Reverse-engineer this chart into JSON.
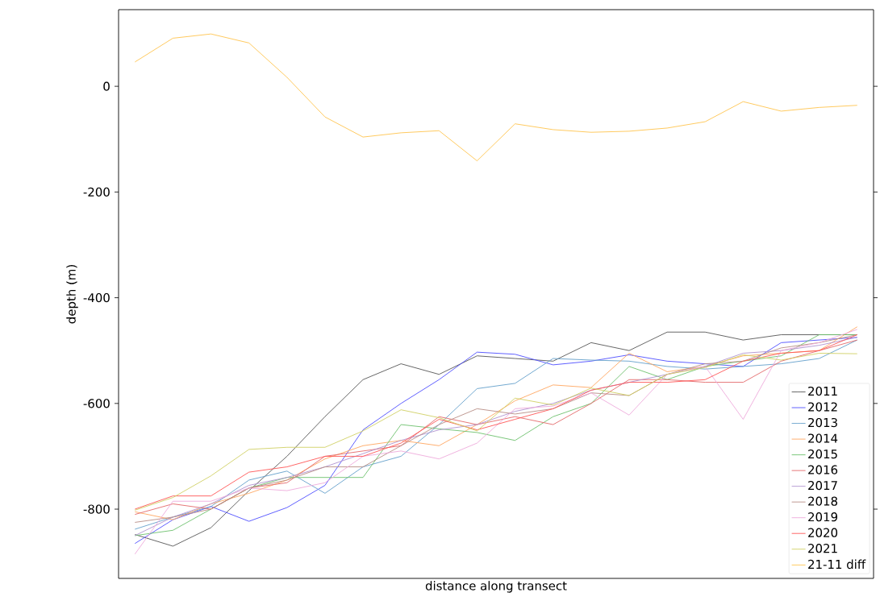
{
  "chart_data": {
    "type": "line",
    "xlabel": "distance along transect",
    "ylabel": "depth (m)",
    "categories": [
      null,
      null,
      null,
      null,
      null,
      null,
      null,
      null,
      null,
      null,
      null,
      null,
      null,
      null,
      null,
      null,
      null,
      null,
      null,
      null
    ],
    "ylim": [
      -931,
      145
    ],
    "yticks": [
      0,
      -200,
      -400,
      -600,
      -800
    ],
    "tick_labels": "y",
    "legend": "bottom right",
    "line_style": "solid",
    "marker": "none",
    "series": [
      {
        "name": "2011",
        "color": "#555555",
        "values": [
          -848,
          -870,
          -835,
          -765,
          -700,
          -625,
          -555,
          -525,
          -545,
          -510,
          -515,
          -520,
          -485,
          -500,
          -465,
          -465,
          -480,
          -470,
          -470,
          -470
        ]
      },
      {
        "name": "2012",
        "color": "#4d4dff",
        "values": [
          -865,
          -820,
          -795,
          -823,
          -797,
          -755,
          -650,
          -600,
          -555,
          -503,
          -507,
          -527,
          -520,
          -508,
          -520,
          -525,
          -530,
          -485,
          -480,
          -475
        ]
      },
      {
        "name": "2013",
        "color": "#629fca",
        "values": [
          -838,
          -815,
          -795,
          -745,
          -728,
          -770,
          -720,
          -700,
          -640,
          -572,
          -562,
          -515,
          -518,
          -520,
          -530,
          -535,
          -530,
          -525,
          -515,
          -480
        ]
      },
      {
        "name": "2014",
        "color": "#ffa55f",
        "values": [
          -805,
          -820,
          -790,
          -770,
          -745,
          -705,
          -680,
          -670,
          -680,
          -640,
          -595,
          -565,
          -570,
          -505,
          -540,
          -530,
          -510,
          -505,
          -500,
          -455
        ]
      },
      {
        "name": "2015",
        "color": "#6cc06c",
        "values": [
          -850,
          -840,
          -800,
          -760,
          -740,
          -740,
          -740,
          -640,
          -648,
          -655,
          -670,
          -625,
          -600,
          -530,
          -555,
          -530,
          -520,
          -510,
          -470,
          -470
        ]
      },
      {
        "name": "2016",
        "color": "#e36869",
        "values": [
          -810,
          -790,
          -800,
          -760,
          -750,
          -700,
          -690,
          -680,
          -625,
          -640,
          -625,
          -640,
          -600,
          -555,
          -555,
          -560,
          -560,
          -520,
          -500,
          -480
        ]
      },
      {
        "name": "2017",
        "color": "#b092cf",
        "values": [
          -850,
          -815,
          -790,
          -755,
          -740,
          -720,
          -695,
          -670,
          -650,
          -640,
          -615,
          -600,
          -575,
          -560,
          -545,
          -530,
          -505,
          -500,
          -490,
          -475
        ]
      },
      {
        "name": "2018",
        "color": "#b78d85",
        "values": [
          -825,
          -815,
          -800,
          -760,
          -745,
          -720,
          -720,
          -680,
          -640,
          -610,
          -620,
          -610,
          -580,
          -585,
          -545,
          -525,
          -520,
          -495,
          -485,
          -470
        ]
      },
      {
        "name": "2019",
        "color": "#eeaadb",
        "values": [
          -885,
          -785,
          -785,
          -760,
          -765,
          -750,
          -700,
          -690,
          -705,
          -675,
          -610,
          -605,
          -580,
          -622,
          -545,
          -530,
          -630,
          -500,
          -485,
          -460
        ]
      },
      {
        "name": "2020",
        "color": "#ff5555",
        "values": [
          -800,
          -775,
          -775,
          -730,
          -720,
          -700,
          -700,
          -675,
          -630,
          -650,
          -630,
          -610,
          -575,
          -560,
          -560,
          -555,
          -520,
          -505,
          -500,
          -470
        ]
      },
      {
        "name": "2021",
        "color": "#d0d063",
        "values": [
          -802,
          -778,
          -737,
          -687,
          -683,
          -683,
          -652,
          -612,
          -627,
          -652,
          -590,
          -603,
          -571,
          -585,
          -545,
          -532,
          -508,
          -518,
          -505,
          -506
        ]
      },
      {
        "name": "21-11 diff",
        "color": "#ffc44d",
        "values": [
          46,
          91,
          99,
          82,
          17,
          -58,
          -96,
          -88,
          -84,
          -141,
          -71,
          -82,
          -87,
          -85,
          -79,
          -67,
          -29,
          -47,
          -40,
          -36
        ]
      }
    ]
  }
}
